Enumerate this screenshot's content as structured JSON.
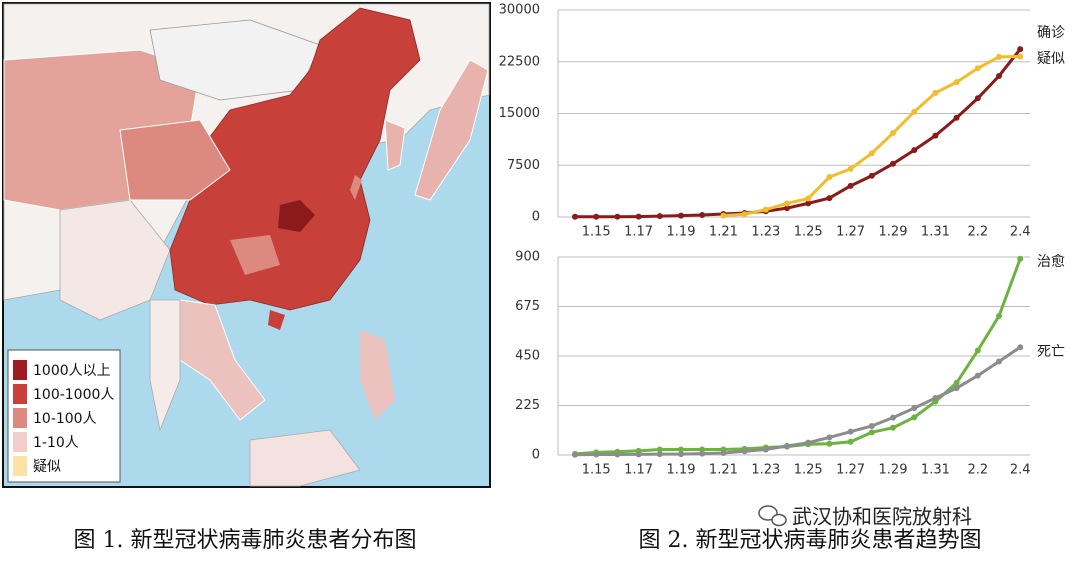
{
  "chart_data": [
    {
      "type": "line",
      "categories": [
        null,
        "1.15",
        null,
        "1.17",
        null,
        "1.19",
        null,
        "1.21",
        null,
        "1.23",
        null,
        "1.25",
        null,
        "1.27",
        null,
        "1.29",
        null,
        "1.31",
        null,
        "2.2",
        null,
        "2.4"
      ],
      "ylim": [
        0,
        30000
      ],
      "yticks": [
        0,
        7500,
        15000,
        22500,
        30000
      ],
      "grid": true,
      "series": [
        {
          "name": "确诊",
          "color": "#8b1a1a",
          "values": [
            41,
            41,
            45,
            62,
            121,
            198,
            291,
            440,
            571,
            830,
            1287,
            1975,
            2744,
            4515,
            5974,
            7711,
            9692,
            11791,
            14380,
            17205,
            20438,
            24324
          ]
        },
        {
          "name": "疑似",
          "color": "#f2bd2c",
          "values": [
            null,
            null,
            null,
            null,
            null,
            null,
            null,
            200,
            393,
            1072,
            1965,
            2684,
            5794,
            6973,
            9239,
            12167,
            15238,
            17988,
            19544,
            21558,
            23214,
            23260
          ]
        }
      ]
    },
    {
      "type": "line",
      "categories": [
        null,
        "1.15",
        null,
        "1.17",
        null,
        "1.19",
        null,
        "1.21",
        null,
        "1.23",
        null,
        "1.25",
        null,
        "1.27",
        null,
        "1.29",
        null,
        "1.31",
        null,
        "2.2",
        null,
        "2.4"
      ],
      "ylim": [
        0,
        900
      ],
      "yticks": [
        0,
        225,
        450,
        675,
        900
      ],
      "grid": true,
      "series": [
        {
          "name": "治愈",
          "color": "#6db33f",
          "values": [
            5,
            12,
            15,
            19,
            25,
            25,
            25,
            25,
            28,
            34,
            38,
            49,
            51,
            60,
            103,
            124,
            171,
            243,
            328,
            475,
            632,
            892
          ]
        },
        {
          "name": "死亡",
          "color": "#8c8c8c",
          "values": [
            1,
            2,
            2,
            3,
            4,
            4,
            6,
            9,
            17,
            25,
            41,
            56,
            80,
            106,
            132,
            170,
            213,
            259,
            304,
            361,
            425,
            490
          ]
        }
      ]
    }
  ],
  "map_legend": {
    "items": [
      {
        "label": "1000人以上",
        "color": "#9e1b22"
      },
      {
        "label": "100-1000人",
        "color": "#c7403a"
      },
      {
        "label": "10-100人",
        "color": "#dc8a80"
      },
      {
        "label": "1-10人",
        "color": "#f2cdcd"
      },
      {
        "label": "疑似",
        "color": "#fde2a6"
      }
    ]
  },
  "captions": [
    "图 1. 新型冠状病毒肺炎患者分布图",
    "图 2. 新型冠状病毒肺炎患者趋势图"
  ],
  "watermark": "武汉协和医院放射科"
}
